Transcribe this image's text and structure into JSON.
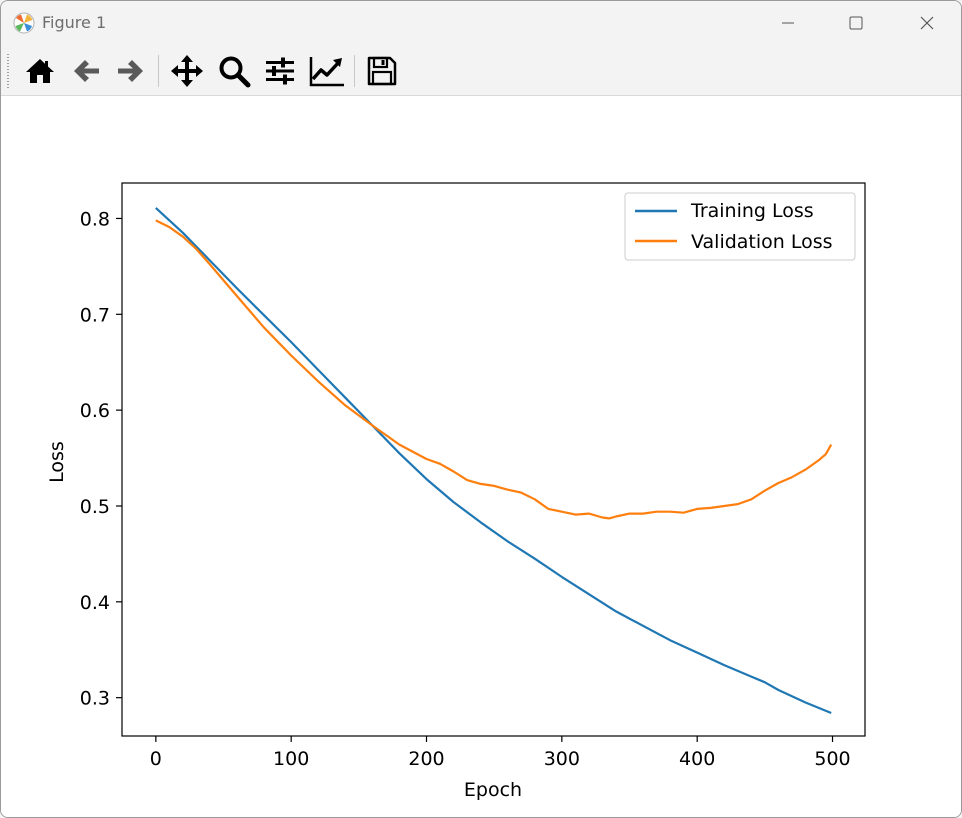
{
  "window": {
    "title": "Figure 1",
    "controls": [
      "minimize-icon",
      "maximize-icon",
      "close-icon"
    ]
  },
  "toolbar": {
    "tools": [
      {
        "name": "home-icon",
        "action": "Home"
      },
      {
        "name": "back-arrow-icon",
        "action": "Back"
      },
      {
        "name": "forward-arrow-icon",
        "action": "Forward"
      },
      {
        "name": "pan-icon",
        "action": "Pan"
      },
      {
        "name": "zoom-icon",
        "action": "Zoom"
      },
      {
        "name": "configure-subplots-icon",
        "action": "Subplots"
      },
      {
        "name": "edit-axis-icon",
        "action": "Customize"
      },
      {
        "name": "save-icon",
        "action": "Save"
      }
    ]
  },
  "colors": {
    "training": "#1f77b4",
    "validation": "#ff7f0e"
  },
  "chart_data": {
    "type": "line",
    "title": "",
    "xlabel": "Epoch",
    "ylabel": "Loss",
    "xlim": [
      -25,
      524
    ],
    "ylim": [
      0.26,
      0.837
    ],
    "xticks": [
      0,
      100,
      200,
      300,
      400,
      500
    ],
    "xtick_labels": [
      "0",
      "100",
      "200",
      "300",
      "400",
      "500"
    ],
    "yticks": [
      0.3,
      0.4,
      0.5,
      0.6,
      0.7,
      0.8
    ],
    "ytick_labels": [
      "0.3",
      "0.4",
      "0.5",
      "0.6",
      "0.7",
      "0.8"
    ],
    "grid": false,
    "legend_position": "top-right",
    "series": [
      {
        "name": "Training Loss",
        "color": "#1f77b4",
        "x": [
          0,
          20,
          40,
          60,
          80,
          100,
          120,
          140,
          160,
          180,
          200,
          220,
          240,
          260,
          280,
          300,
          320,
          340,
          360,
          380,
          400,
          420,
          440,
          450,
          460,
          480,
          499
        ],
        "y": [
          0.811,
          0.785,
          0.756,
          0.727,
          0.699,
          0.671,
          0.642,
          0.613,
          0.584,
          0.555,
          0.528,
          0.504,
          0.483,
          0.463,
          0.445,
          0.426,
          0.408,
          0.39,
          0.375,
          0.36,
          0.347,
          0.334,
          0.322,
          0.316,
          0.308,
          0.295,
          0.284
        ]
      },
      {
        "name": "Validation Loss",
        "color": "#ff7f0e",
        "x": [
          0,
          10,
          20,
          30,
          40,
          60,
          80,
          100,
          120,
          140,
          160,
          180,
          200,
          210,
          220,
          230,
          240,
          250,
          260,
          270,
          280,
          290,
          300,
          310,
          320,
          330,
          335,
          340,
          350,
          360,
          370,
          380,
          390,
          400,
          410,
          420,
          430,
          440,
          450,
          460,
          470,
          480,
          490,
          495,
          499
        ],
        "y": [
          0.798,
          0.791,
          0.781,
          0.768,
          0.752,
          0.719,
          0.686,
          0.657,
          0.63,
          0.605,
          0.584,
          0.564,
          0.549,
          0.544,
          0.536,
          0.527,
          0.523,
          0.521,
          0.517,
          0.514,
          0.507,
          0.497,
          0.494,
          0.491,
          0.492,
          0.488,
          0.487,
          0.489,
          0.492,
          0.492,
          0.494,
          0.494,
          0.493,
          0.497,
          0.498,
          0.5,
          0.502,
          0.507,
          0.516,
          0.524,
          0.53,
          0.538,
          0.548,
          0.554,
          0.564
        ]
      }
    ]
  }
}
